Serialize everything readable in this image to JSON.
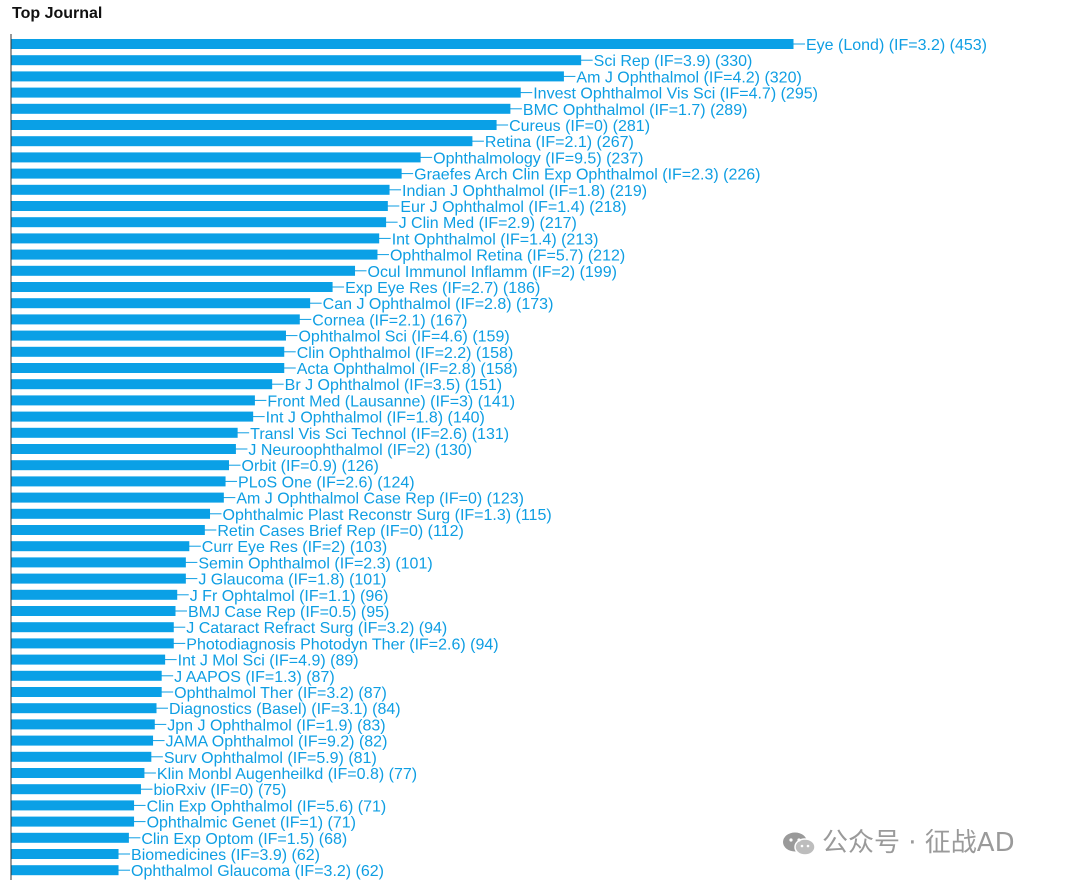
{
  "header": {
    "title": "Top Journal"
  },
  "watermark": {
    "text": "公众号 · 征战AD"
  },
  "colors": {
    "bar": "#0aa0e6",
    "label": "#0e9ee3"
  },
  "chart_data": {
    "type": "bar",
    "orientation": "horizontal",
    "title": "Top Journal",
    "xlabel": "",
    "ylabel": "",
    "xlim": [
      0,
      453
    ],
    "grid": false,
    "categories": [
      "Eye (Lond) (IF=3.2) (453)",
      "Sci Rep (IF=3.9) (330)",
      "Am J Ophthalmol (IF=4.2) (320)",
      "Invest Ophthalmol Vis Sci (IF=4.7) (295)",
      "BMC Ophthalmol (IF=1.7) (289)",
      "Cureus (IF=0) (281)",
      "Retina (IF=2.1) (267)",
      "Ophthalmology (IF=9.5) (237)",
      "Graefes Arch Clin Exp Ophthalmol (IF=2.3) (226)",
      "Indian J Ophthalmol (IF=1.8) (219)",
      "Eur J Ophthalmol (IF=1.4) (218)",
      "J Clin Med (IF=2.9) (217)",
      "Int Ophthalmol (IF=1.4) (213)",
      "Ophthalmol Retina (IF=5.7) (212)",
      "Ocul Immunol Inflamm (IF=2) (199)",
      "Exp Eye Res (IF=2.7) (186)",
      "Can J Ophthalmol (IF=2.8) (173)",
      "Cornea (IF=2.1) (167)",
      "Ophthalmol Sci (IF=4.6) (159)",
      "Clin Ophthalmol (IF=2.2) (158)",
      "Acta Ophthalmol (IF=2.8) (158)",
      "Br J Ophthalmol (IF=3.5) (151)",
      "Front Med (Lausanne) (IF=3) (141)",
      "Int J Ophthalmol (IF=1.8) (140)",
      "Transl Vis Sci Technol (IF=2.6) (131)",
      "J Neuroophthalmol (IF=2) (130)",
      "Orbit (IF=0.9) (126)",
      "PLoS One (IF=2.6) (124)",
      "Am J Ophthalmol Case Rep (IF=0) (123)",
      "Ophthalmic Plast Reconstr Surg (IF=1.3) (115)",
      "Retin Cases Brief Rep (IF=0) (112)",
      "Curr Eye Res (IF=2) (103)",
      "Semin Ophthalmol (IF=2.3) (101)",
      "J Glaucoma (IF=1.8) (101)",
      "J Fr Ophtalmol (IF=1.1) (96)",
      "BMJ Case Rep (IF=0.5) (95)",
      "J Cataract Refract Surg (IF=3.2) (94)",
      "Photodiagnosis Photodyn Ther (IF=2.6) (94)",
      "Int J Mol Sci (IF=4.9) (89)",
      "J AAPOS (IF=1.3) (87)",
      "Ophthalmol Ther (IF=3.2) (87)",
      "Diagnostics (Basel) (IF=3.1) (84)",
      "Jpn J Ophthalmol (IF=1.9) (83)",
      "JAMA Ophthalmol (IF=9.2) (82)",
      "Surv Ophthalmol (IF=5.9) (81)",
      "Klin Monbl Augenheilkd (IF=0.8) (77)",
      "bioRxiv (IF=0) (75)",
      "Clin Exp Ophthalmol (IF=5.6) (71)",
      "Ophthalmic Genet (IF=1) (71)",
      "Clin Exp Optom (IF=1.5) (68)",
      "Biomedicines (IF=3.9) (62)",
      "Ophthalmol Glaucoma (IF=3.2) (62)"
    ],
    "values": [
      453,
      330,
      320,
      295,
      289,
      281,
      267,
      237,
      226,
      219,
      218,
      217,
      213,
      212,
      199,
      186,
      173,
      167,
      159,
      158,
      158,
      151,
      141,
      140,
      131,
      130,
      126,
      124,
      123,
      115,
      112,
      103,
      101,
      101,
      96,
      95,
      94,
      94,
      89,
      87,
      87,
      84,
      83,
      82,
      81,
      77,
      75,
      71,
      71,
      68,
      62,
      62
    ]
  }
}
